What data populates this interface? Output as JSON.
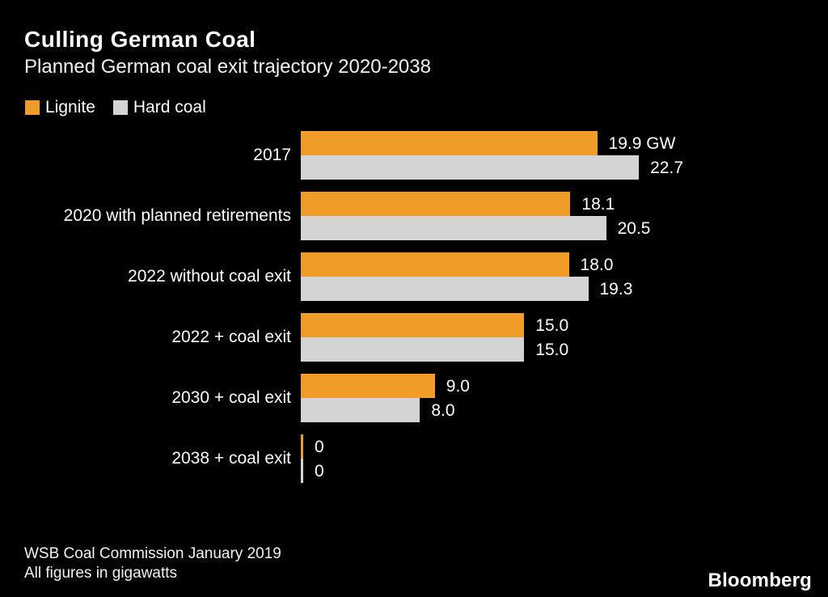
{
  "branding": {
    "logo": "Bloomberg"
  },
  "colors": {
    "background": "#000000",
    "text": "#ffffff",
    "lignite": "#F09C28",
    "hard_coal": "#D4D4D4"
  },
  "chart_data": {
    "type": "bar",
    "orientation": "horizontal",
    "title": "Culling German Coal",
    "subtitle": "Planned German coal exit trajectory 2020-2038",
    "unit": "GW",
    "xlim": [
      0,
      22.7
    ],
    "grid": false,
    "legend_position": "top-left",
    "series": [
      {
        "name": "Lignite",
        "color": "#F09C28"
      },
      {
        "name": "Hard coal",
        "color": "#D4D4D4"
      }
    ],
    "categories": [
      "2017",
      "2020 with planned retirements",
      "2022 without coal exit",
      "2022 + coal exit",
      "2030 + coal exit",
      "2038 + coal exit"
    ],
    "rows": [
      {
        "category": "2017",
        "lignite": 19.9,
        "hard_coal": 22.7,
        "lignite_label": "19.9 GW",
        "hard_coal_label": "22.7"
      },
      {
        "category": "2020 with planned retirements",
        "lignite": 18.1,
        "hard_coal": 20.5,
        "lignite_label": "18.1",
        "hard_coal_label": "20.5"
      },
      {
        "category": "2022 without coal exit",
        "lignite": 18.0,
        "hard_coal": 19.3,
        "lignite_label": "18.0",
        "hard_coal_label": "19.3"
      },
      {
        "category": "2022 + coal exit",
        "lignite": 15.0,
        "hard_coal": 15.0,
        "lignite_label": "15.0",
        "hard_coal_label": "15.0"
      },
      {
        "category": "2030 + coal exit",
        "lignite": 9.0,
        "hard_coal": 8.0,
        "lignite_label": "9.0",
        "hard_coal_label": "8.0"
      },
      {
        "category": "2038 + coal exit",
        "lignite": 0,
        "hard_coal": 0,
        "lignite_label": "0",
        "hard_coal_label": "0"
      }
    ],
    "source_line1": "WSB Coal Commission January 2019",
    "source_line2": "All figures in gigawatts"
  }
}
